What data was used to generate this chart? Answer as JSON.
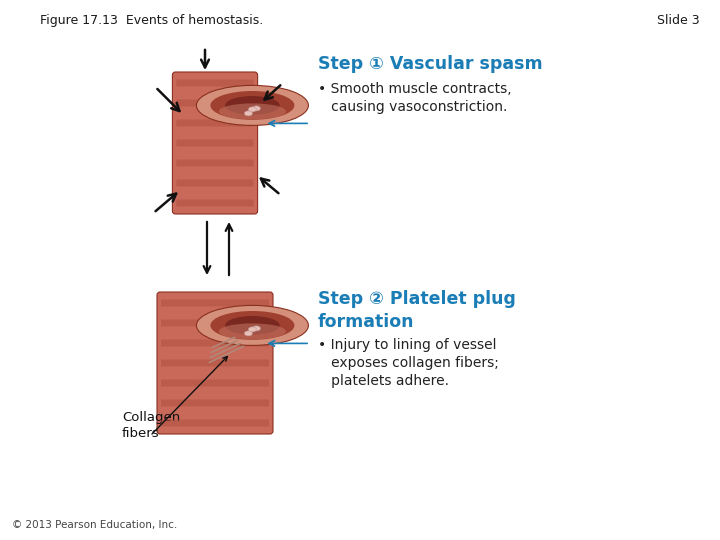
{
  "title": "Figure 17.13  Events of hemostasis.",
  "slide_label": "Slide 3",
  "background_color": "#ffffff",
  "title_color": "#1a1a1a",
  "slide_label_color": "#1a1a1a",
  "title_fontsize": 9.0,
  "slide_label_fontsize": 9.0,
  "blue_color": "#1a7db5",
  "step1_title": "Step ① Vascular spasm",
  "step1_bullet1": "• Smooth muscle contracts,",
  "step1_bullet2": "   causing vasoconstriction.",
  "step2_title_line1": "Step ② Platelet plug",
  "step2_title_line2": "formation",
  "step2_bullet1": "• Injury to lining of vessel",
  "step2_bullet2": "   exposes collagen fibers;",
  "step2_bullet3": "   platelets adhere.",
  "collagen_label": "Collagen\nfibers",
  "copyright": "© 2013 Pearson Education, Inc.",
  "vessel_outer_color": "#c8695a",
  "vessel_wall_color": "#c86050",
  "vessel_ridge_color": "#b05040",
  "vessel_inner_color": "#d4907a",
  "vessel_lumen_color": "#a04030",
  "vessel_deep_color": "#7a2820",
  "vessel_endothelium": "#c07060",
  "platelet_color": "#e8c0b8",
  "platelet_edge": "#c09898"
}
